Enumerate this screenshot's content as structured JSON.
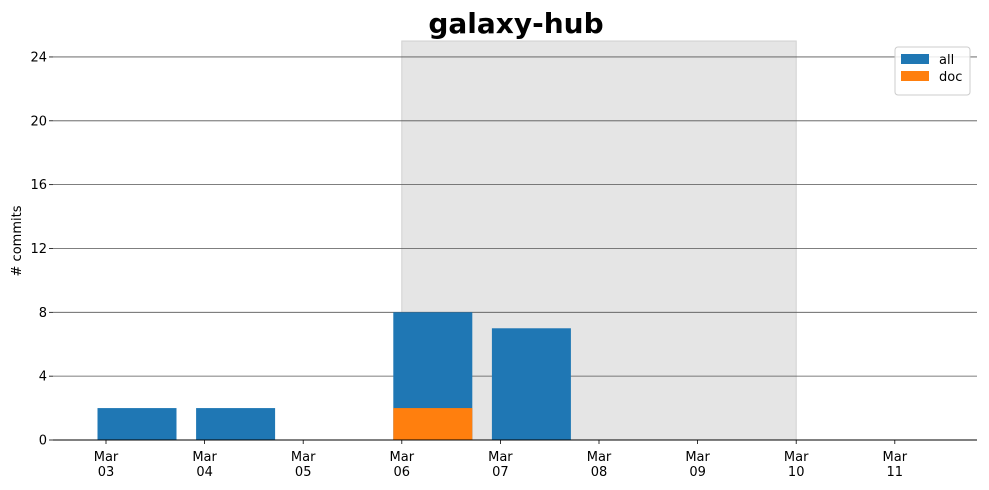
{
  "chart_data": {
    "type": "bar",
    "stacked": false,
    "title": "galaxy-hub",
    "xlabel": "",
    "ylabel": "# commits",
    "ylim": [
      0,
      25
    ],
    "yticks": [
      0,
      4,
      8,
      12,
      16,
      20,
      24
    ],
    "categories": [
      "Mar\n03",
      "Mar\n04",
      "Mar\n05",
      "Mar\n06",
      "Mar\n07",
      "Mar\n08",
      "Mar\n09",
      "Mar\n10",
      "Mar\n11"
    ],
    "series": [
      {
        "name": "all",
        "color": "#1f77b4",
        "values": [
          2,
          2,
          0,
          8,
          7,
          0,
          0,
          0,
          0
        ]
      },
      {
        "name": "doc",
        "color": "#ff7f0e",
        "values": [
          0,
          0,
          0,
          2,
          0,
          0,
          0,
          0,
          0
        ]
      }
    ],
    "highlight_span": {
      "from": "Mar\n06",
      "to": "Mar\n10",
      "color": "#e5e5e5"
    },
    "grid": "y",
    "legend_position": "top-right"
  }
}
